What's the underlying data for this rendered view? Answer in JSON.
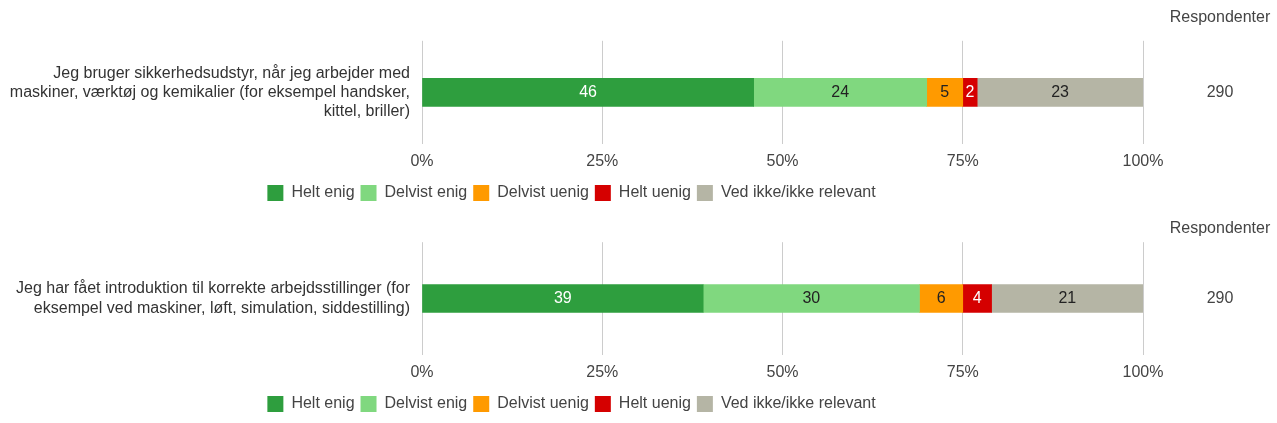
{
  "chart_data": [
    {
      "type": "bar",
      "orientation": "horizontal",
      "stacked": true,
      "categories": [
        "Jeg bruger sikkerhedsudstyr, når jeg arbejder med maskiner, værktøj og kemikalier (for eksempel handsker, kittel, briller)"
      ],
      "series": [
        {
          "name": "Helt enig",
          "color": "#2e9e3e",
          "values": [
            46
          ]
        },
        {
          "name": "Delvist enig",
          "color": "#80d87f",
          "values": [
            24
          ]
        },
        {
          "name": "Delvist uenig",
          "color": "#ff9a00",
          "values": [
            5
          ]
        },
        {
          "name": "Helt uenig",
          "color": "#d50000",
          "values": [
            2
          ]
        },
        {
          "name": "Ved ikke/ikke relevant",
          "color": "#b5b5a5",
          "values": [
            23
          ]
        }
      ],
      "xlim": [
        0,
        100
      ],
      "xticks": [
        {
          "value": 0,
          "label": "0%"
        },
        {
          "value": 25,
          "label": "25%"
        },
        {
          "value": 50,
          "label": "50%"
        },
        {
          "value": 75,
          "label": "75%"
        },
        {
          "value": 100,
          "label": "100%"
        }
      ],
      "grid": "x",
      "legend": "bottom",
      "data_labels": true,
      "annotations": [
        "Respondenter",
        "290"
      ]
    },
    {
      "type": "bar",
      "orientation": "horizontal",
      "stacked": true,
      "categories": [
        "Jeg har fået introduktion til korrekte arbejdsstillinger (for eksempel ved maskiner, løft, simulation, siddestilling)"
      ],
      "series": [
        {
          "name": "Helt enig",
          "color": "#2e9e3e",
          "values": [
            39
          ]
        },
        {
          "name": "Delvist enig",
          "color": "#80d87f",
          "values": [
            30
          ]
        },
        {
          "name": "Delvist uenig",
          "color": "#ff9a00",
          "values": [
            6
          ]
        },
        {
          "name": "Helt uenig",
          "color": "#d50000",
          "values": [
            4
          ]
        },
        {
          "name": "Ved ikke/ikke relevant",
          "color": "#b5b5a5",
          "values": [
            21
          ]
        }
      ],
      "xlim": [
        0,
        100
      ],
      "xticks": [
        {
          "value": 0,
          "label": "0%"
        },
        {
          "value": 25,
          "label": "25%"
        },
        {
          "value": 50,
          "label": "50%"
        },
        {
          "value": 75,
          "label": "75%"
        },
        {
          "value": 100,
          "label": "100%"
        }
      ],
      "grid": "x",
      "legend": "bottom",
      "data_labels": true,
      "annotations": [
        "Respondenter",
        "290"
      ]
    }
  ]
}
